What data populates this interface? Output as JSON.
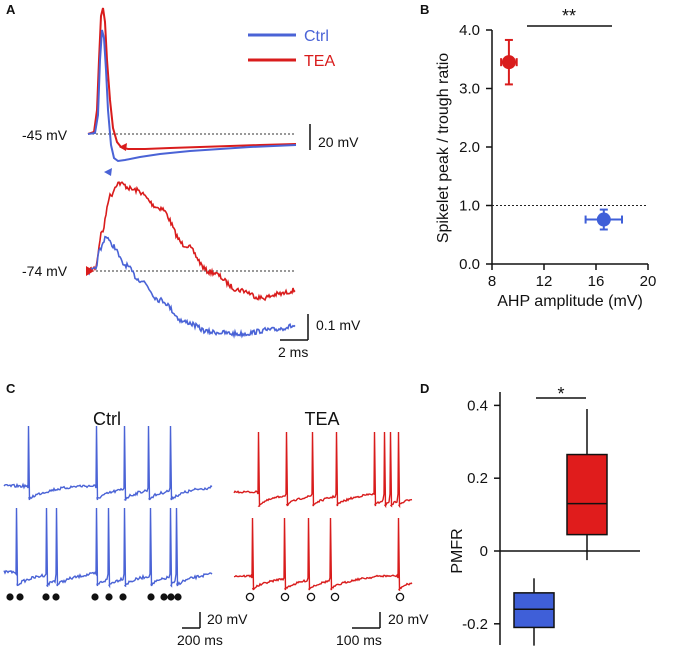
{
  "colors": {
    "ctrl": "#4a63d6",
    "tea": "#d91c1c",
    "ctrl_fill": "#3f5fd8",
    "tea_fill": "#e01c1c",
    "ref": "#333333"
  },
  "panels": {
    "a": "A",
    "b": "B",
    "c": "C",
    "d": "D"
  },
  "chart_data": [
    {
      "panel": "A",
      "type": "line",
      "title": "",
      "legend": {
        "position": "top-right",
        "entries": [
          "Ctrl",
          "TEA"
        ]
      },
      "traces": [
        {
          "name": "Ctrl",
          "part": "spike",
          "baseline_label": "-45 mV"
        },
        {
          "name": "TEA",
          "part": "spike",
          "baseline_label": "-45 mV"
        },
        {
          "name": "Ctrl",
          "part": "spikelet",
          "baseline_label": "-74 mV"
        },
        {
          "name": "TEA",
          "part": "spikelet",
          "baseline_label": "-74 mV"
        }
      ],
      "baseline_labels": [
        "-45 mV",
        "-74 mV"
      ],
      "scalebars": {
        "spike_v": "20 mV",
        "spikelet_v": "0.1 mV",
        "time": "2 ms"
      }
    },
    {
      "panel": "B",
      "type": "scatter",
      "xlabel": "AHP amplitude (mV)",
      "ylabel": "Spikelet peak / trough ratio",
      "xlim": [
        8,
        20
      ],
      "ylim": [
        0,
        4
      ],
      "xticks": [
        "8",
        "12",
        "16",
        "20"
      ],
      "yticks": [
        "0.0",
        "1.0",
        "2.0",
        "3.0",
        "4.0"
      ],
      "reference_line": 1.0,
      "significance": "**",
      "points": [
        {
          "name": "TEA",
          "x": 9.3,
          "y": 3.45,
          "xerr": 0.6,
          "yerr": 0.38
        },
        {
          "name": "Ctrl",
          "x": 16.6,
          "y": 0.76,
          "xerr": 1.4,
          "yerr": 0.17
        }
      ]
    },
    {
      "panel": "C",
      "type": "line",
      "groups": [
        {
          "name": "Ctrl",
          "markers": "filled",
          "marker_count": 11,
          "scalebars": {
            "v": "20 mV",
            "t": "200 ms"
          }
        },
        {
          "name": "TEA",
          "markers": "open",
          "marker_count": 5,
          "scalebars": {
            "v": "20 mV",
            "t": "100 ms"
          }
        }
      ]
    },
    {
      "panel": "D",
      "type": "box",
      "ylabel": "PMFR",
      "ylim": [
        -0.3,
        0.45
      ],
      "yticks": [
        "-0.2",
        "0",
        "0.2",
        "0.4"
      ],
      "significance": "*",
      "boxes": [
        {
          "name": "Ctrl",
          "min": -0.26,
          "q1": -0.21,
          "median": -0.16,
          "q3": -0.115,
          "max": -0.075
        },
        {
          "name": "TEA",
          "min": -0.025,
          "q1": 0.045,
          "median": 0.13,
          "q3": 0.265,
          "max": 0.39
        }
      ]
    }
  ]
}
